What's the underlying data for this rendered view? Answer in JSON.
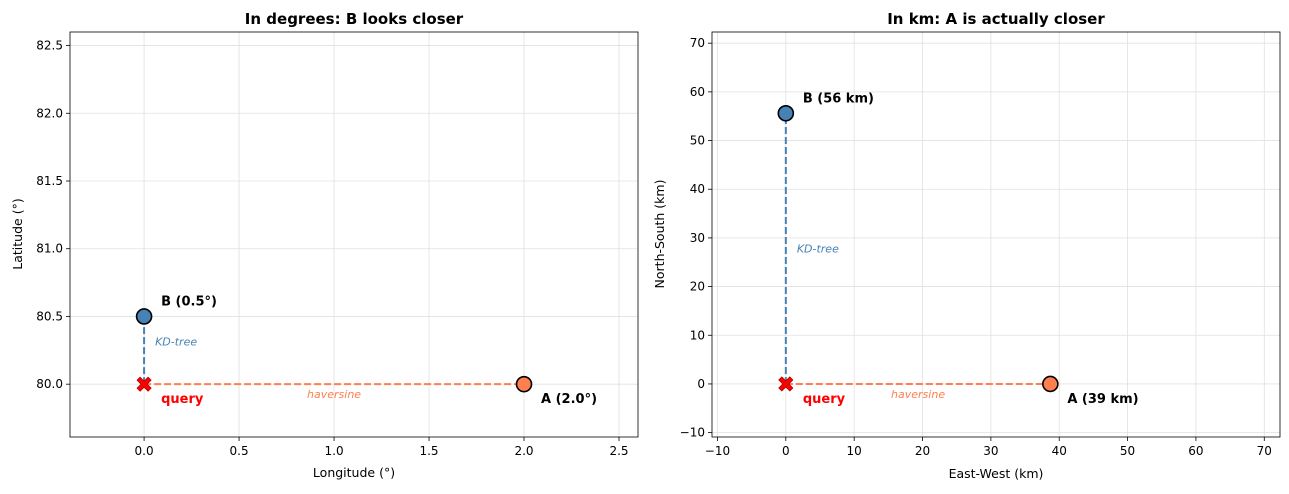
{
  "chart_data": [
    {
      "type": "scatter",
      "title": "In degrees: B looks closer",
      "xlabel": "Longitude (°)",
      "ylabel": "Latitude (°)",
      "xlim": [
        -0.39,
        2.6
      ],
      "ylim": [
        79.61,
        82.6
      ],
      "xticks": [
        0.0,
        0.5,
        1.0,
        1.5,
        2.0,
        2.5
      ],
      "xtick_labels": [
        "0.0",
        "0.5",
        "1.0",
        "1.5",
        "2.0",
        "2.5"
      ],
      "yticks": [
        80.0,
        80.5,
        81.0,
        81.5,
        82.0,
        82.5
      ],
      "ytick_labels": [
        "80.0",
        "80.5",
        "81.0",
        "81.5",
        "82.0",
        "82.5"
      ],
      "grid": true,
      "points": [
        {
          "id": "query",
          "x": 0.0,
          "y": 80.0,
          "label": "query",
          "marker": "X",
          "color": "#ff0000"
        },
        {
          "id": "B",
          "x": 0.0,
          "y": 80.5,
          "label": "B (0.5°)",
          "marker": "o",
          "color": "#4682b4"
        },
        {
          "id": "A",
          "x": 2.0,
          "y": 80.0,
          "label": "A (2.0°)",
          "marker": "o",
          "color": "#ff7f50"
        }
      ],
      "lines": [
        {
          "from": "query",
          "to": "B",
          "label": "KD-tree",
          "color": "#4682b4"
        },
        {
          "from": "query",
          "to": "A",
          "label": "haversine",
          "color": "#ff7f50"
        }
      ]
    },
    {
      "type": "scatter",
      "title": "In km: A is actually closer",
      "xlabel": "East-West (km)",
      "ylabel": "North-South (km)",
      "xlim": [
        -10.8,
        72.3
      ],
      "ylim": [
        -10.9,
        72.3
      ],
      "xticks": [
        -10,
        0,
        10,
        20,
        30,
        40,
        50,
        60,
        70
      ],
      "xtick_labels": [
        "−10",
        "0",
        "10",
        "20",
        "30",
        "40",
        "50",
        "60",
        "70"
      ],
      "yticks": [
        -10,
        0,
        10,
        20,
        30,
        40,
        50,
        60,
        70
      ],
      "ytick_labels": [
        "−10",
        "0",
        "10",
        "20",
        "30",
        "40",
        "50",
        "60",
        "70"
      ],
      "grid": true,
      "points": [
        {
          "id": "query",
          "x": 0,
          "y": 0,
          "label": "query",
          "marker": "X",
          "color": "#ff0000"
        },
        {
          "id": "B",
          "x": 0,
          "y": 55.6,
          "label": "B (56 km)",
          "marker": "o",
          "color": "#4682b4"
        },
        {
          "id": "A",
          "x": 38.7,
          "y": 0,
          "label": "A (39 km)",
          "marker": "o",
          "color": "#ff7f50"
        }
      ],
      "lines": [
        {
          "from": "query",
          "to": "B",
          "label": "KD-tree",
          "color": "#4682b4"
        },
        {
          "from": "query",
          "to": "A",
          "label": "haversine",
          "color": "#ff7f50"
        }
      ]
    }
  ]
}
